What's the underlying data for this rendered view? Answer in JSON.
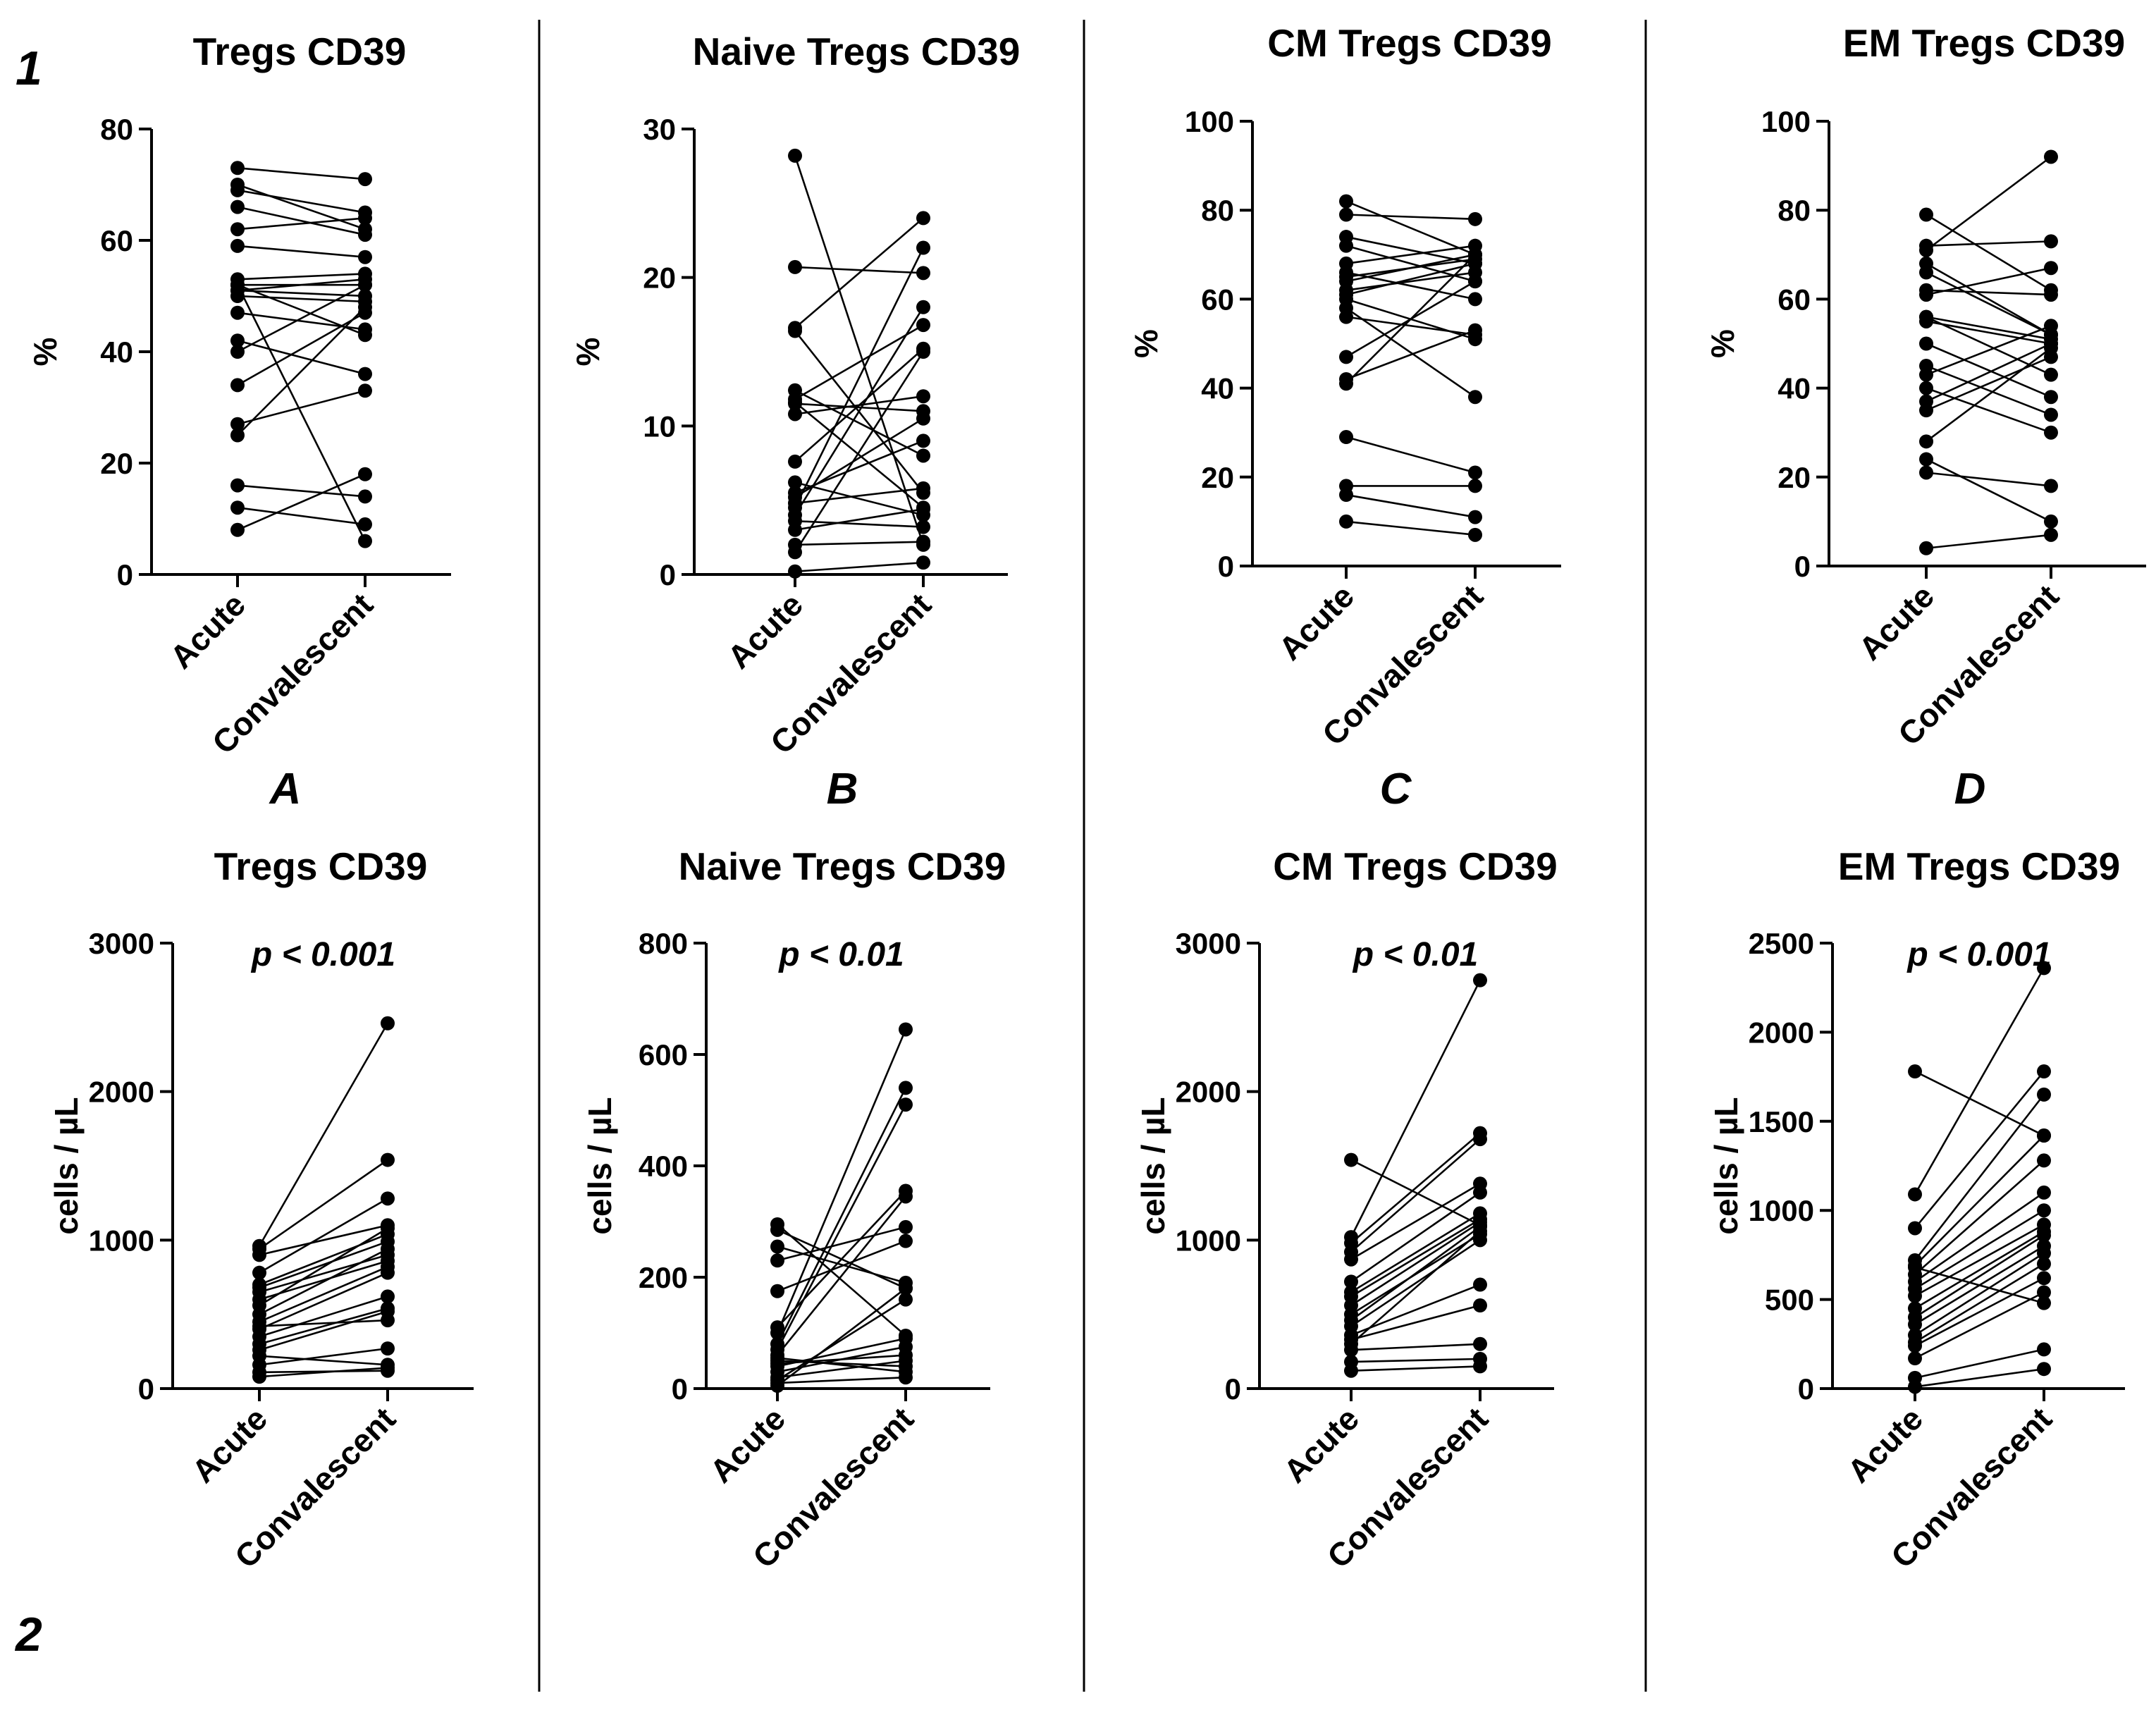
{
  "row_markers": [
    "1",
    "2"
  ],
  "chart_data": [
    {
      "type": "line",
      "title": "Tregs CD39",
      "panel_letter": "A",
      "ylabel": "%",
      "ylim": [
        0,
        80
      ],
      "yticks": [
        0,
        20,
        40,
        60,
        80
      ],
      "ytick_labels": [
        "0",
        "20",
        "40",
        "60",
        "80"
      ],
      "categories": [
        "Acute",
        "Convalescent"
      ],
      "pvalue": "",
      "pairs": [
        [
          73,
          71
        ],
        [
          70,
          62
        ],
        [
          69,
          65
        ],
        [
          66,
          61
        ],
        [
          62,
          64
        ],
        [
          59,
          57
        ],
        [
          53,
          54
        ],
        [
          52,
          52
        ],
        [
          51,
          53
        ],
        [
          51,
          50
        ],
        [
          50,
          49
        ],
        [
          47,
          44
        ],
        [
          42,
          36
        ],
        [
          40,
          52
        ],
        [
          34,
          47
        ],
        [
          27,
          33
        ],
        [
          25,
          48
        ],
        [
          16,
          14
        ],
        [
          12,
          9
        ],
        [
          8,
          18
        ],
        [
          52,
          6
        ],
        [
          52,
          43
        ]
      ]
    },
    {
      "type": "line",
      "title": "Naive Tregs CD39",
      "panel_letter": "B",
      "ylabel": "%",
      "ylim": [
        0,
        30
      ],
      "yticks": [
        0,
        10,
        20,
        30
      ],
      "ytick_labels": [
        "0",
        "10",
        "20",
        "30"
      ],
      "categories": [
        "Acute",
        "Convalescent"
      ],
      "pvalue": "",
      "pairs": [
        [
          28.2,
          2.0
        ],
        [
          20.7,
          20.3
        ],
        [
          16.6,
          24.0
        ],
        [
          16.4,
          5.5
        ],
        [
          12.4,
          8.0
        ],
        [
          11.8,
          16.8
        ],
        [
          11.6,
          4.5
        ],
        [
          11.5,
          11.0
        ],
        [
          10.8,
          12.0
        ],
        [
          7.6,
          15.2
        ],
        [
          6.2,
          4.0
        ],
        [
          5.5,
          9.0
        ],
        [
          5.2,
          10.5
        ],
        [
          4.8,
          5.8
        ],
        [
          4.5,
          22.0
        ],
        [
          4.0,
          18.0
        ],
        [
          3.6,
          3.2
        ],
        [
          3.0,
          4.4
        ],
        [
          2.0,
          2.2
        ],
        [
          1.5,
          15.0
        ],
        [
          0.2,
          0.8
        ]
      ]
    },
    {
      "type": "line",
      "title": "CM Tregs CD39",
      "panel_letter": "C",
      "ylabel": "%",
      "ylim": [
        0,
        100
      ],
      "yticks": [
        0,
        20,
        40,
        60,
        80,
        100
      ],
      "ytick_labels": [
        "0",
        "20",
        "40",
        "60",
        "80",
        "100"
      ],
      "categories": [
        "Acute",
        "Convalescent"
      ],
      "pvalue": "",
      "pairs": [
        [
          82,
          70
        ],
        [
          79,
          78
        ],
        [
          74,
          68
        ],
        [
          72,
          64
        ],
        [
          68,
          72
        ],
        [
          66,
          60
        ],
        [
          65,
          69
        ],
        [
          64,
          70
        ],
        [
          62,
          66
        ],
        [
          61,
          68
        ],
        [
          60,
          51
        ],
        [
          58,
          38
        ],
        [
          56,
          52
        ],
        [
          47,
          64
        ],
        [
          42,
          53
        ],
        [
          41,
          70
        ],
        [
          29,
          21
        ],
        [
          18,
          18
        ],
        [
          16,
          11
        ],
        [
          10,
          7
        ]
      ]
    },
    {
      "type": "line",
      "title": "EM Tregs CD39",
      "panel_letter": "D",
      "ylabel": "%",
      "ylim": [
        0,
        100
      ],
      "yticks": [
        0,
        20,
        40,
        60,
        80,
        100
      ],
      "ytick_labels": [
        "0",
        "20",
        "40",
        "60",
        "80",
        "100"
      ],
      "categories": [
        "Acute",
        "Convalescent"
      ],
      "pvalue": "",
      "pairs": [
        [
          79,
          62
        ],
        [
          72,
          73
        ],
        [
          71,
          92
        ],
        [
          66,
          52
        ],
        [
          62,
          61
        ],
        [
          61,
          67
        ],
        [
          56,
          51
        ],
        [
          55,
          50
        ],
        [
          50,
          38
        ],
        [
          45,
          34
        ],
        [
          43,
          54
        ],
        [
          40,
          30
        ],
        [
          37,
          50
        ],
        [
          35,
          47
        ],
        [
          28,
          49
        ],
        [
          24,
          10
        ],
        [
          21,
          18
        ],
        [
          4,
          7
        ],
        [
          68,
          52
        ],
        [
          56,
          43
        ]
      ]
    },
    {
      "type": "line",
      "title": "Tregs CD39",
      "panel_letter": "",
      "ylabel": "cells  /  µL",
      "ylim": [
        0,
        3000
      ],
      "yticks": [
        0,
        1000,
        2000,
        3000
      ],
      "ytick_labels": [
        "0",
        "1000",
        "2000",
        "3000"
      ],
      "categories": [
        "Acute",
        "Convalescent"
      ],
      "pvalue": "p < 0.001",
      "pairs": [
        [
          960,
          2460
        ],
        [
          940,
          1540
        ],
        [
          900,
          1100
        ],
        [
          780,
          1280
        ],
        [
          700,
          1040
        ],
        [
          650,
          900
        ],
        [
          600,
          860
        ],
        [
          560,
          1080
        ],
        [
          500,
          940
        ],
        [
          450,
          820
        ],
        [
          400,
          780
        ],
        [
          350,
          620
        ],
        [
          300,
          540
        ],
        [
          260,
          520
        ],
        [
          220,
          160
        ],
        [
          160,
          270
        ],
        [
          110,
          120
        ],
        [
          80,
          140
        ],
        [
          680,
          990
        ],
        [
          420,
          460
        ]
      ]
    },
    {
      "type": "line",
      "title": "Naive Tregs CD39",
      "panel_letter": "",
      "ylabel": "cells  /  µL",
      "ylim": [
        0,
        800
      ],
      "yticks": [
        0,
        200,
        400,
        600,
        800
      ],
      "ytick_labels": [
        "0",
        "200",
        "400",
        "600",
        "800"
      ],
      "categories": [
        "Acute",
        "Convalescent"
      ],
      "pvalue": "p < 0.01",
      "pairs": [
        [
          295,
          95
        ],
        [
          285,
          180
        ],
        [
          255,
          190
        ],
        [
          230,
          290
        ],
        [
          175,
          265
        ],
        [
          110,
          355
        ],
        [
          100,
          645
        ],
        [
          80,
          540
        ],
        [
          70,
          510
        ],
        [
          60,
          345
        ],
        [
          50,
          40
        ],
        [
          45,
          60
        ],
        [
          40,
          90
        ],
        [
          30,
          75
        ],
        [
          20,
          50
        ],
        [
          15,
          160
        ],
        [
          10,
          20
        ],
        [
          5,
          180
        ],
        [
          55,
          30
        ]
      ]
    },
    {
      "type": "line",
      "title": "CM Tregs CD39",
      "panel_letter": "",
      "ylabel": "cells  /  µL",
      "ylim": [
        0,
        3000
      ],
      "yticks": [
        0,
        1000,
        2000,
        3000
      ],
      "ytick_labels": [
        "0",
        "1000",
        "2000",
        "3000"
      ],
      "categories": [
        "Acute",
        "Convalescent"
      ],
      "pvalue": "p < 0.01",
      "pairs": [
        [
          1540,
          1100
        ],
        [
          1020,
          2750
        ],
        [
          980,
          1720
        ],
        [
          920,
          1680
        ],
        [
          870,
          1380
        ],
        [
          720,
          1320
        ],
        [
          650,
          1180
        ],
        [
          560,
          1120
        ],
        [
          500,
          1040
        ],
        [
          420,
          1000
        ],
        [
          360,
          700
        ],
        [
          330,
          560
        ],
        [
          300,
          1060
        ],
        [
          260,
          300
        ],
        [
          180,
          200
        ],
        [
          120,
          150
        ],
        [
          620,
          1140
        ],
        [
          460,
          1090
        ]
      ]
    },
    {
      "type": "line",
      "title": "EM Tregs CD39",
      "panel_letter": "",
      "ylabel": "cells  /  µL",
      "ylim": [
        0,
        2500
      ],
      "yticks": [
        0,
        500,
        1000,
        1500,
        2000,
        2500
      ],
      "ytick_labels": [
        "0",
        "500",
        "1000",
        "1500",
        "2000",
        "2500"
      ],
      "categories": [
        "Acute",
        "Convalescent"
      ],
      "pvalue": "p < 0.001",
      "pairs": [
        [
          1780,
          1420
        ],
        [
          1090,
          2360
        ],
        [
          900,
          1780
        ],
        [
          720,
          1650
        ],
        [
          690,
          1420
        ],
        [
          640,
          1280
        ],
        [
          600,
          1100
        ],
        [
          560,
          1000
        ],
        [
          520,
          920
        ],
        [
          400,
          860
        ],
        [
          360,
          800
        ],
        [
          300,
          760
        ],
        [
          260,
          700
        ],
        [
          240,
          620
        ],
        [
          170,
          540
        ],
        [
          60,
          220
        ],
        [
          10,
          110
        ],
        [
          680,
          480
        ],
        [
          450,
          880
        ]
      ]
    }
  ]
}
